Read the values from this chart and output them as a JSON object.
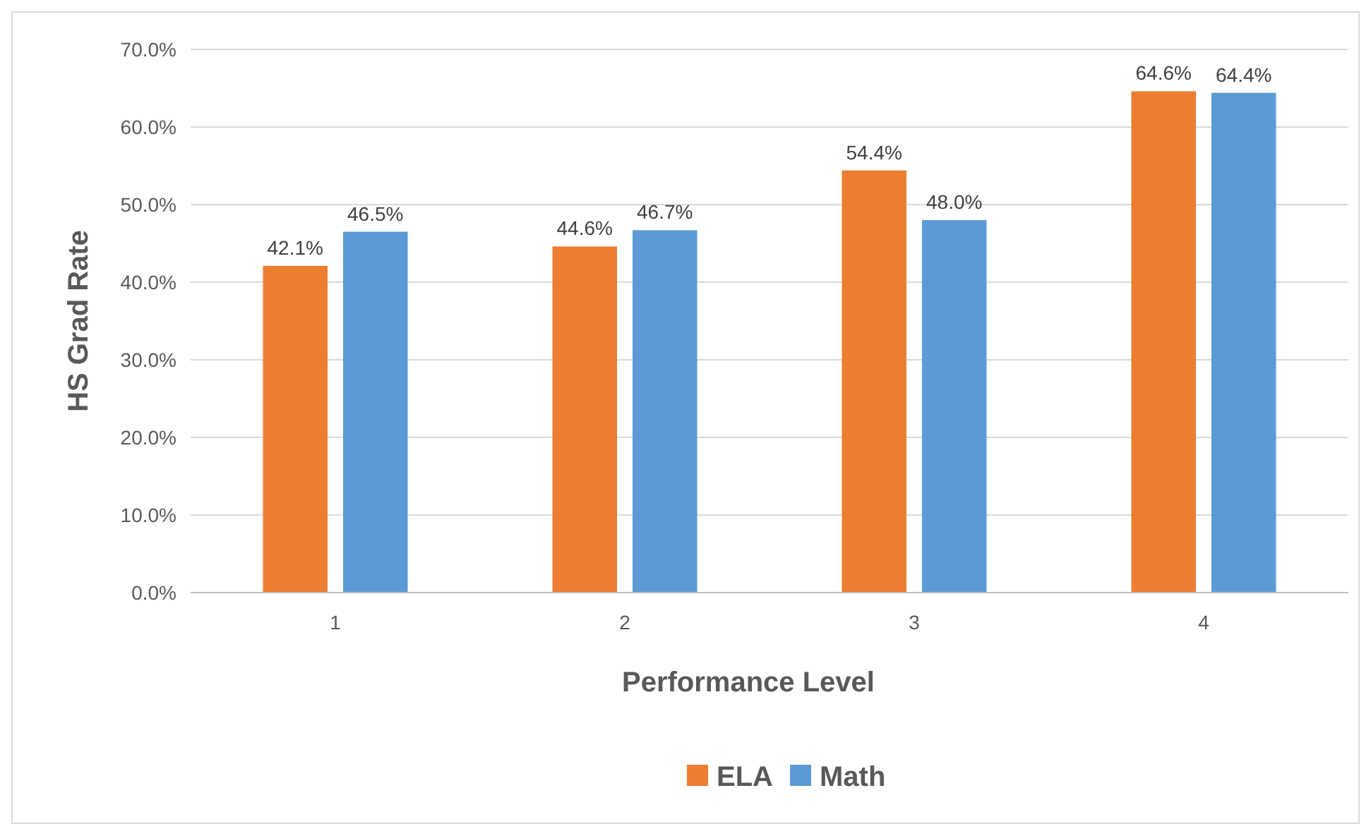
{
  "chart_data": {
    "type": "bar",
    "xlabel": "Performance Level",
    "ylabel": "HS Grad Rate",
    "categories": [
      "1",
      "2",
      "3",
      "4"
    ],
    "series": [
      {
        "name": "ELA",
        "color": "#ed7d31",
        "values": [
          42.1,
          44.6,
          54.4,
          64.6
        ],
        "value_labels": [
          "42.1%",
          "44.6%",
          "54.4%",
          "64.6%"
        ]
      },
      {
        "name": "Math",
        "color": "#5b9bd5",
        "values": [
          46.5,
          46.7,
          48.0,
          64.4
        ],
        "value_labels": [
          "46.5%",
          "46.7%",
          "48.0%",
          "64.4%"
        ]
      }
    ],
    "ylim": [
      0,
      70
    ],
    "yticks": [
      {
        "value": 0,
        "label": "0.0%"
      },
      {
        "value": 10,
        "label": "10.0%"
      },
      {
        "value": 20,
        "label": "20.0%"
      },
      {
        "value": 30,
        "label": "30.0%"
      },
      {
        "value": 40,
        "label": "40.0%"
      },
      {
        "value": 50,
        "label": "50.0%"
      },
      {
        "value": 60,
        "label": "60.0%"
      },
      {
        "value": 70,
        "label": "70.0%"
      }
    ],
    "grid": "y",
    "legend": "bottom"
  }
}
